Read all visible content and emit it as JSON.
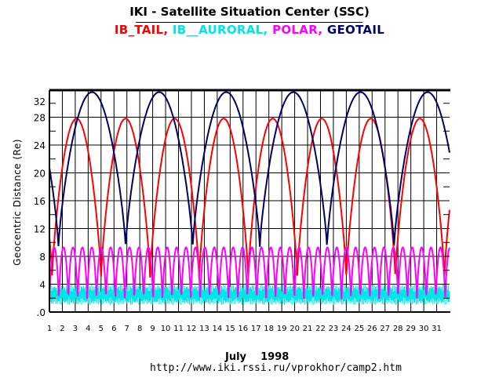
{
  "chart_data": {
    "type": "line",
    "title": "IKI - Satellite Situation Center (SSC)",
    "xlabel": "July    1998",
    "ylabel": "Geocentric Distance (Re)",
    "footer": "http://www.iki.rssi.ru/vprokhor/camp2.htm",
    "xlim": [
      1,
      32
    ],
    "ylim": [
      0,
      32
    ],
    "x_ticks": [
      "1",
      "2",
      "3",
      "4",
      "5",
      "6",
      "7",
      "8",
      "9",
      "10",
      "11",
      "12",
      "13",
      "14",
      "15",
      "16",
      "17",
      "18",
      "19",
      "20",
      "21",
      "22",
      "23",
      "24",
      "25",
      "26",
      "27",
      "28",
      "29",
      "30",
      "31"
    ],
    "y_ticks": [
      ".0",
      "4",
      "8",
      "12",
      "16",
      "20",
      "24",
      "28",
      "32"
    ],
    "y_tick_values": [
      0,
      4,
      8,
      12,
      16,
      20,
      24,
      28,
      32
    ],
    "grid": true,
    "legend_position": "top-center",
    "series": [
      {
        "name": "IB_TAIL",
        "color": "#ff0000",
        "min": 4.8,
        "max": 27.8,
        "period_days": 3.8,
        "first_min_day": 1.2
      },
      {
        "name": "IB__AURORAL",
        "color": "#00e5e5",
        "min": 1.0,
        "max": 4.0,
        "period_days": 0.08,
        "first_min_day": 1.0
      },
      {
        "name": "POLAR",
        "color": "#ff00ff",
        "min": 1.8,
        "max": 9.3,
        "period_days": 0.73,
        "first_min_day": 1.0
      },
      {
        "name": "GEOTAIL",
        "color": "#000066",
        "min": 9.3,
        "max": 31.6,
        "period_days": 5.2,
        "first_min_day": 1.7
      }
    ]
  }
}
